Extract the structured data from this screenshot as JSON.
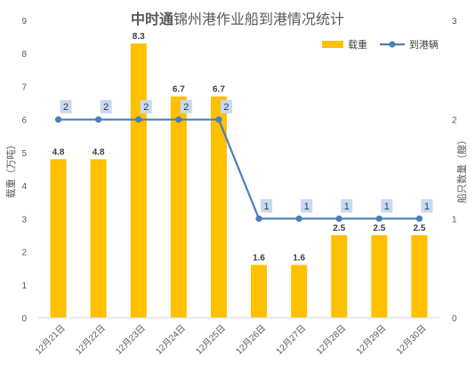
{
  "chart_data": {
    "type": "bar",
    "title_prefix": "中时通",
    "title_rest": "锦州港作业船到港情况统计",
    "categories": [
      "12月21日",
      "12月22日",
      "12月23日",
      "12月24日",
      "12月25日",
      "12月26日",
      "12月27日",
      "12月28日",
      "12月29日",
      "12月30日"
    ],
    "series": [
      {
        "name": "载重",
        "type": "bar",
        "axis": "left",
        "values": [
          4.8,
          4.8,
          8.3,
          6.7,
          6.7,
          1.6,
          1.6,
          2.5,
          2.5,
          2.5
        ]
      },
      {
        "name": "到港辆",
        "type": "line",
        "axis": "right",
        "values": [
          2,
          2,
          2,
          2,
          2,
          1,
          1,
          1,
          1,
          1
        ]
      }
    ],
    "ylabel_left": "载重（万吨）",
    "ylabel_right": "船只数量（艘）",
    "ylim_left": [
      0,
      9
    ],
    "yticks_left": [
      "0",
      "1",
      "2",
      "3",
      "4",
      "5",
      "6",
      "7",
      "8",
      "9"
    ],
    "ylim_right": [
      0,
      3
    ],
    "yticks_right": [
      "0",
      "1",
      "2",
      "3"
    ],
    "grid": false,
    "legend_position": "top-right",
    "colors": {
      "bar": "#FFC000",
      "line": "#4A7EBB",
      "line_label_bg": "#C6D9F1"
    }
  }
}
